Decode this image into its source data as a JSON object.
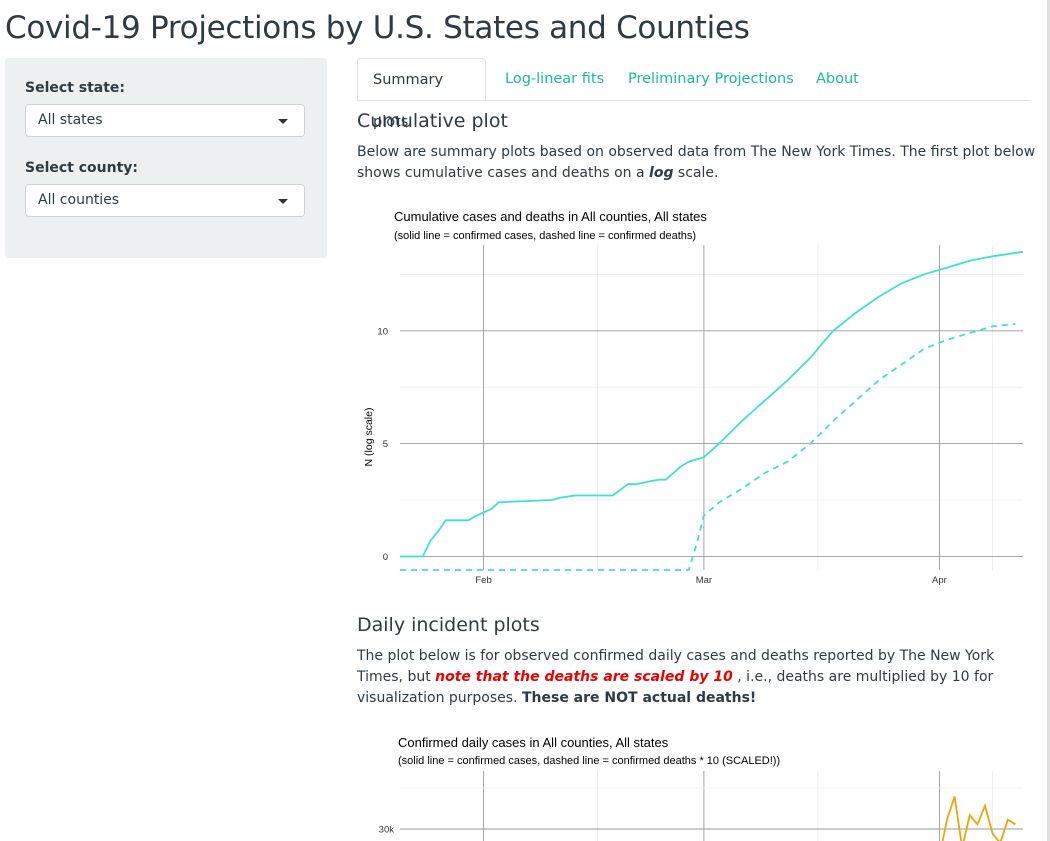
{
  "page": {
    "title": "Covid-19 Projections by U.S. States and Counties"
  },
  "sidebar": {
    "state_label": "Select state:",
    "state_value": "All states",
    "county_label": "Select county:",
    "county_value": "All counties"
  },
  "tabs": [
    {
      "label": "Summary plots",
      "active": true
    },
    {
      "label": "Log-linear fits",
      "active": false
    },
    {
      "label": "Preliminary Projections",
      "active": false
    },
    {
      "label": "About",
      "active": false
    }
  ],
  "section1": {
    "heading": "Cumulative plot",
    "text_a": "Below are summary plots based on observed data from The New York Times. The first plot below shows cumulative cases and deaths on a ",
    "text_em": "log",
    "text_b": " scale."
  },
  "section2": {
    "heading": "Daily incident plots",
    "text_a": "The plot below is for observed confirmed daily cases and deaths reported by The New York Times, but ",
    "text_red": "note that the deaths are scaled by 10",
    "text_b": " , i.e., deaths are multiplied by 10 for visualization purposes. ",
    "text_bold": "These are NOT actual deaths!"
  },
  "colors": {
    "cases_line": "#40e0d0",
    "daily_line": "#f0a30a",
    "link": "#18bc9c"
  },
  "chart_data": [
    {
      "type": "line",
      "title": "Cumulative cases and deaths in All counties, All states",
      "subtitle": "(solid line = confirmed cases, dashed line = confirmed deaths)",
      "xlabel": "",
      "ylabel": "N (log scale)",
      "y_scale": "log (natural)",
      "ylim": [
        -0.6,
        13.8
      ],
      "y_ticks": [
        0,
        5,
        10
      ],
      "x_ticks": [
        "Feb",
        "Mar",
        "Apr"
      ],
      "x_range": [
        "2020-01-21",
        "2020-04-12"
      ],
      "grid": true,
      "series": [
        {
          "style": "solid",
          "x": [
            "2020-01-21",
            "2020-01-24",
            "2020-01-25",
            "2020-01-26",
            "2020-01-27",
            "2020-01-30",
            "2020-01-31",
            "2020-02-02",
            "2020-02-03",
            "2020-02-10",
            "2020-02-11",
            "2020-02-13",
            "2020-02-18",
            "2020-02-20",
            "2020-02-21",
            "2020-02-24",
            "2020-02-25",
            "2020-02-26",
            "2020-02-27",
            "2020-02-28",
            "2020-03-01",
            "2020-03-03",
            "2020-03-06",
            "2020-03-09",
            "2020-03-12",
            "2020-03-15",
            "2020-03-18",
            "2020-03-21",
            "2020-03-24",
            "2020-03-27",
            "2020-03-30",
            "2020-04-02",
            "2020-04-05",
            "2020-04-08",
            "2020-04-12"
          ],
          "y": [
            0,
            0,
            0.7,
            1.1,
            1.6,
            1.6,
            1.8,
            2.1,
            2.4,
            2.5,
            2.6,
            2.7,
            2.7,
            3.2,
            3.2,
            3.4,
            3.4,
            3.7,
            4.0,
            4.2,
            4.4,
            5.0,
            6.0,
            6.9,
            7.8,
            8.8,
            10.0,
            10.8,
            11.5,
            12.1,
            12.5,
            12.8,
            13.1,
            13.3,
            13.5
          ]
        },
        {
          "style": "dashed",
          "x": [
            "2020-01-21",
            "2020-02-28",
            "2020-02-29",
            "2020-03-01",
            "2020-03-03",
            "2020-03-06",
            "2020-03-09",
            "2020-03-12",
            "2020-03-15",
            "2020-03-18",
            "2020-03-21",
            "2020-03-24",
            "2020-03-27",
            "2020-03-30",
            "2020-04-02",
            "2020-04-05",
            "2020-04-08",
            "2020-04-11"
          ],
          "y": [
            -0.6,
            -0.6,
            0.5,
            1.8,
            2.4,
            3.0,
            3.7,
            4.2,
            5.0,
            6.0,
            6.9,
            7.8,
            8.5,
            9.2,
            9.6,
            9.9,
            10.2,
            10.3
          ]
        }
      ]
    },
    {
      "type": "line",
      "title": "Confirmed daily cases in All counties, All states",
      "subtitle": "(solid line = confirmed cases, dashed line = confirmed deaths * 10 (SCALED!))",
      "y_ticks": [
        "30k"
      ],
      "x_range": [
        "2020-01-21",
        "2020-04-12"
      ],
      "grid": true,
      "series": [
        {
          "style": "solid",
          "x": [
            "2020-04-01",
            "2020-04-02",
            "2020-04-03",
            "2020-04-04",
            "2020-04-05",
            "2020-04-06",
            "2020-04-07",
            "2020-04-08",
            "2020-04-09",
            "2020-04-10",
            "2020-04-11"
          ],
          "y": [
            27000,
            31000,
            33500,
            28000,
            31500,
            30500,
            32500,
            29500,
            28500,
            31000,
            30500
          ]
        }
      ]
    }
  ]
}
